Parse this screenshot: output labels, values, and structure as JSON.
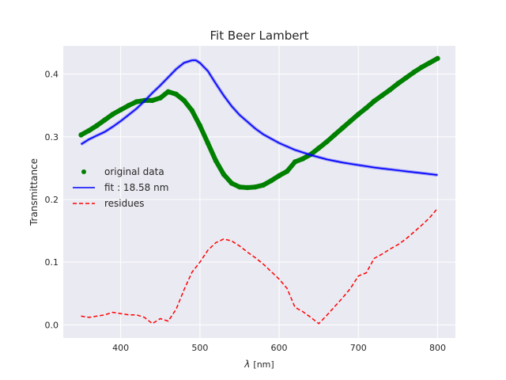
{
  "chart_data": {
    "type": "line",
    "title": "Fit Beer Lambert",
    "xlabel_symbol": "λ",
    "xlabel_unit": "[nm]",
    "ylabel": "Transmittance",
    "xlim": [
      327.5,
      822.5
    ],
    "ylim": [
      -0.021,
      0.445
    ],
    "xticks": [
      400,
      500,
      600,
      700,
      800
    ],
    "yticks": [
      0.0,
      0.1,
      0.2,
      0.3,
      0.4
    ],
    "grid": true,
    "legend_position": "center-left",
    "series": [
      {
        "name": "original data",
        "style": "points",
        "color": "#008000",
        "x": [
          350,
          360,
          370,
          380,
          390,
          400,
          410,
          420,
          430,
          440,
          450,
          460,
          470,
          480,
          490,
          500,
          510,
          520,
          530,
          540,
          550,
          560,
          570,
          580,
          590,
          600,
          610,
          620,
          630,
          640,
          650,
          660,
          670,
          680,
          690,
          700,
          710,
          720,
          730,
          740,
          750,
          760,
          770,
          780,
          790,
          800
        ],
        "y": [
          0.303,
          0.31,
          0.318,
          0.327,
          0.336,
          0.343,
          0.35,
          0.356,
          0.358,
          0.358,
          0.362,
          0.372,
          0.368,
          0.358,
          0.342,
          0.318,
          0.29,
          0.262,
          0.24,
          0.226,
          0.22,
          0.219,
          0.22,
          0.223,
          0.23,
          0.238,
          0.245,
          0.26,
          0.265,
          0.272,
          0.282,
          0.292,
          0.303,
          0.314,
          0.325,
          0.336,
          0.346,
          0.357,
          0.366,
          0.375,
          0.385,
          0.394,
          0.403,
          0.411,
          0.418,
          0.425
        ]
      },
      {
        "name": "fit : 18.58 nm",
        "style": "line",
        "color": "#0000ff",
        "x": [
          350,
          360,
          370,
          380,
          390,
          400,
          410,
          420,
          430,
          440,
          450,
          460,
          470,
          480,
          490,
          495,
          500,
          510,
          520,
          530,
          540,
          550,
          560,
          570,
          580,
          590,
          600,
          620,
          640,
          660,
          680,
          700,
          720,
          740,
          760,
          780,
          800
        ],
        "y": [
          0.288,
          0.296,
          0.302,
          0.308,
          0.316,
          0.325,
          0.335,
          0.345,
          0.357,
          0.37,
          0.382,
          0.395,
          0.408,
          0.418,
          0.422,
          0.422,
          0.418,
          0.405,
          0.385,
          0.366,
          0.349,
          0.335,
          0.324,
          0.313,
          0.304,
          0.297,
          0.29,
          0.279,
          0.271,
          0.264,
          0.259,
          0.255,
          0.251,
          0.248,
          0.245,
          0.242,
          0.239
        ]
      },
      {
        "name": "residues",
        "style": "dashed",
        "color": "#ff0000",
        "x": [
          350,
          360,
          370,
          380,
          390,
          400,
          410,
          420,
          430,
          440,
          450,
          460,
          470,
          480,
          490,
          500,
          510,
          520,
          530,
          540,
          550,
          560,
          570,
          580,
          590,
          600,
          610,
          620,
          630,
          640,
          650,
          660,
          670,
          680,
          690,
          700,
          710,
          720,
          730,
          740,
          750,
          760,
          770,
          780,
          790,
          800
        ],
        "y": [
          0.014,
          0.012,
          0.014,
          0.016,
          0.02,
          0.018,
          0.016,
          0.016,
          0.012,
          0.002,
          0.01,
          0.006,
          0.025,
          0.056,
          0.084,
          0.1,
          0.119,
          0.131,
          0.137,
          0.134,
          0.126,
          0.116,
          0.107,
          0.097,
          0.085,
          0.073,
          0.058,
          0.028,
          0.021,
          0.012,
          0.002,
          0.015,
          0.029,
          0.043,
          0.058,
          0.078,
          0.083,
          0.106,
          0.113,
          0.121,
          0.128,
          0.137,
          0.148,
          0.159,
          0.171,
          0.186
        ]
      }
    ]
  }
}
